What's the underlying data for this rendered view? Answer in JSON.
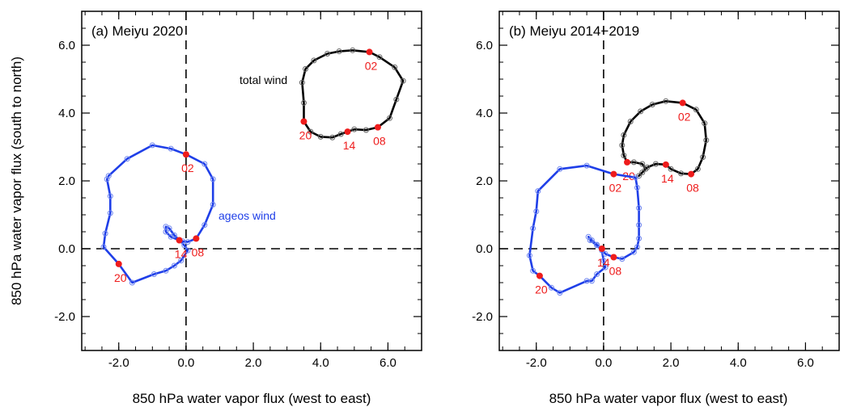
{
  "chart_data": [
    {
      "type": "line",
      "title": "(a) Meiyu 2020",
      "xlabel": "850 hPa water vapor flux (west to east)",
      "ylabel": "850 hPa water vapor flux (south to north)",
      "xlim": [
        -3.1,
        7.0
      ],
      "ylim": [
        -3.0,
        7.0
      ],
      "xticks": [
        "-2.0",
        "0.0",
        "2.0",
        "4.0",
        "6.0"
      ],
      "yticks": [
        "-2.0",
        "0.0",
        "2.0",
        "4.0",
        "6.0"
      ],
      "grid": false,
      "zero_lines": "dashed",
      "series": [
        {
          "name": "total wind",
          "color": "#000000",
          "x": [
            5.45,
            5.75,
            6.2,
            6.45,
            6.25,
            6.05,
            5.7,
            5.35,
            5.0,
            4.8,
            4.6,
            4.35,
            4.0,
            3.7,
            3.5,
            3.5,
            3.45,
            3.55,
            3.8,
            4.2,
            4.55,
            4.95,
            5.45
          ],
          "y": [
            5.8,
            5.65,
            5.35,
            4.95,
            4.4,
            3.85,
            3.58,
            3.5,
            3.52,
            3.45,
            3.38,
            3.28,
            3.3,
            3.45,
            3.75,
            4.3,
            4.9,
            5.3,
            5.55,
            5.75,
            5.82,
            5.85,
            5.8
          ],
          "hour_labels": [
            {
              "text": "02",
              "index": 0
            },
            {
              "text": "08",
              "index": 6
            },
            {
              "text": "14",
              "index": 9
            },
            {
              "text": "20",
              "index": 14
            }
          ]
        },
        {
          "name": "ageos wind",
          "color": "#1f3fe8",
          "x": [
            0.0,
            0.55,
            0.8,
            0.8,
            0.55,
            0.3,
            0.05,
            -0.1,
            -0.2,
            -0.35,
            -0.5,
            -0.6,
            -0.6,
            -0.45,
            -0.2,
            -0.05,
            0.05,
            -0.15,
            -0.35,
            -0.6,
            -0.95,
            -1.6,
            -2.0,
            -2.45,
            -2.4,
            -2.25,
            -2.25,
            -2.35,
            -2.3,
            -1.75,
            -1.0,
            -0.45,
            0.0
          ],
          "y": [
            2.78,
            2.5,
            2.05,
            1.3,
            0.7,
            0.3,
            0.2,
            0.22,
            0.25,
            0.4,
            0.6,
            0.65,
            0.5,
            0.35,
            0.25,
            0.1,
            -0.05,
            -0.35,
            -0.5,
            -0.65,
            -0.75,
            -1.0,
            -0.45,
            0.05,
            0.45,
            1.05,
            1.55,
            2.05,
            2.15,
            2.65,
            3.05,
            2.95,
            2.78
          ],
          "hour_labels": [
            {
              "text": "02",
              "index": 0
            },
            {
              "text": "08",
              "index": 5
            },
            {
              "text": "14",
              "index": 8
            },
            {
              "text": "20",
              "index": 22
            }
          ]
        }
      ],
      "annotations": [
        "total wind",
        "ageos wind"
      ]
    },
    {
      "type": "line",
      "title": "(b) Meiyu 2014−2019",
      "xlabel": "850 hPa water vapor flux (west to east)",
      "ylabel": "",
      "xlim": [
        -3.1,
        7.0
      ],
      "ylim": [
        -3.0,
        7.0
      ],
      "xticks": [
        "-2.0",
        "0.0",
        "2.0",
        "4.0",
        "6.0"
      ],
      "yticks": [
        "-2.0",
        "0.0",
        "2.0",
        "4.0",
        "6.0"
      ],
      "grid": false,
      "zero_lines": "dashed",
      "series": [
        {
          "name": "total wind",
          "color": "#000000",
          "x": [
            2.35,
            2.75,
            3.0,
            3.05,
            2.95,
            2.8,
            2.6,
            2.3,
            2.0,
            1.85,
            1.55,
            1.3,
            1.15,
            1.05,
            1.25,
            1.15,
            0.9,
            0.7,
            0.6,
            0.55,
            0.6,
            0.8,
            1.1,
            1.45,
            1.85,
            2.35
          ],
          "y": [
            4.3,
            4.1,
            3.7,
            3.2,
            2.7,
            2.35,
            2.2,
            2.22,
            2.35,
            2.48,
            2.5,
            2.4,
            2.25,
            2.15,
            2.35,
            2.5,
            2.55,
            2.55,
            2.75,
            3.05,
            3.35,
            3.75,
            4.05,
            4.25,
            4.35,
            4.3
          ],
          "hour_labels": [
            {
              "text": "02",
              "index": 0
            },
            {
              "text": "08",
              "index": 6
            },
            {
              "text": "14",
              "index": 9
            },
            {
              "text": "20",
              "index": 17
            }
          ]
        },
        {
          "name": "",
          "color": "#1f3fe8",
          "x": [
            0.3,
            0.95,
            1.0,
            1.05,
            1.05,
            1.05,
            1.0,
            0.9,
            0.55,
            0.3,
            0.05,
            -0.05,
            -0.2,
            -0.35,
            -0.45,
            -0.4,
            -0.2,
            -0.05,
            0.0,
            0.05,
            -0.2,
            -0.35,
            -0.5,
            -1.3,
            -1.55,
            -1.9,
            -2.1,
            -2.2,
            -2.1,
            -2.0,
            -1.95,
            -1.3,
            -0.5,
            0.3
          ],
          "y": [
            2.2,
            2.1,
            1.8,
            1.2,
            0.7,
            0.3,
            0.05,
            -0.1,
            -0.3,
            -0.25,
            -0.15,
            0.0,
            0.12,
            0.25,
            0.35,
            0.25,
            0.1,
            -0.05,
            -0.35,
            -0.55,
            -0.75,
            -0.95,
            -0.95,
            -1.3,
            -1.15,
            -0.8,
            -0.65,
            -0.2,
            0.6,
            1.1,
            1.7,
            2.35,
            2.45,
            2.2
          ],
          "hour_labels": [
            {
              "text": "02",
              "index": 0
            },
            {
              "text": "08",
              "index": 9
            },
            {
              "text": "14",
              "index": 11
            },
            {
              "text": "20",
              "index": 25
            }
          ]
        }
      ],
      "annotations": []
    }
  ]
}
